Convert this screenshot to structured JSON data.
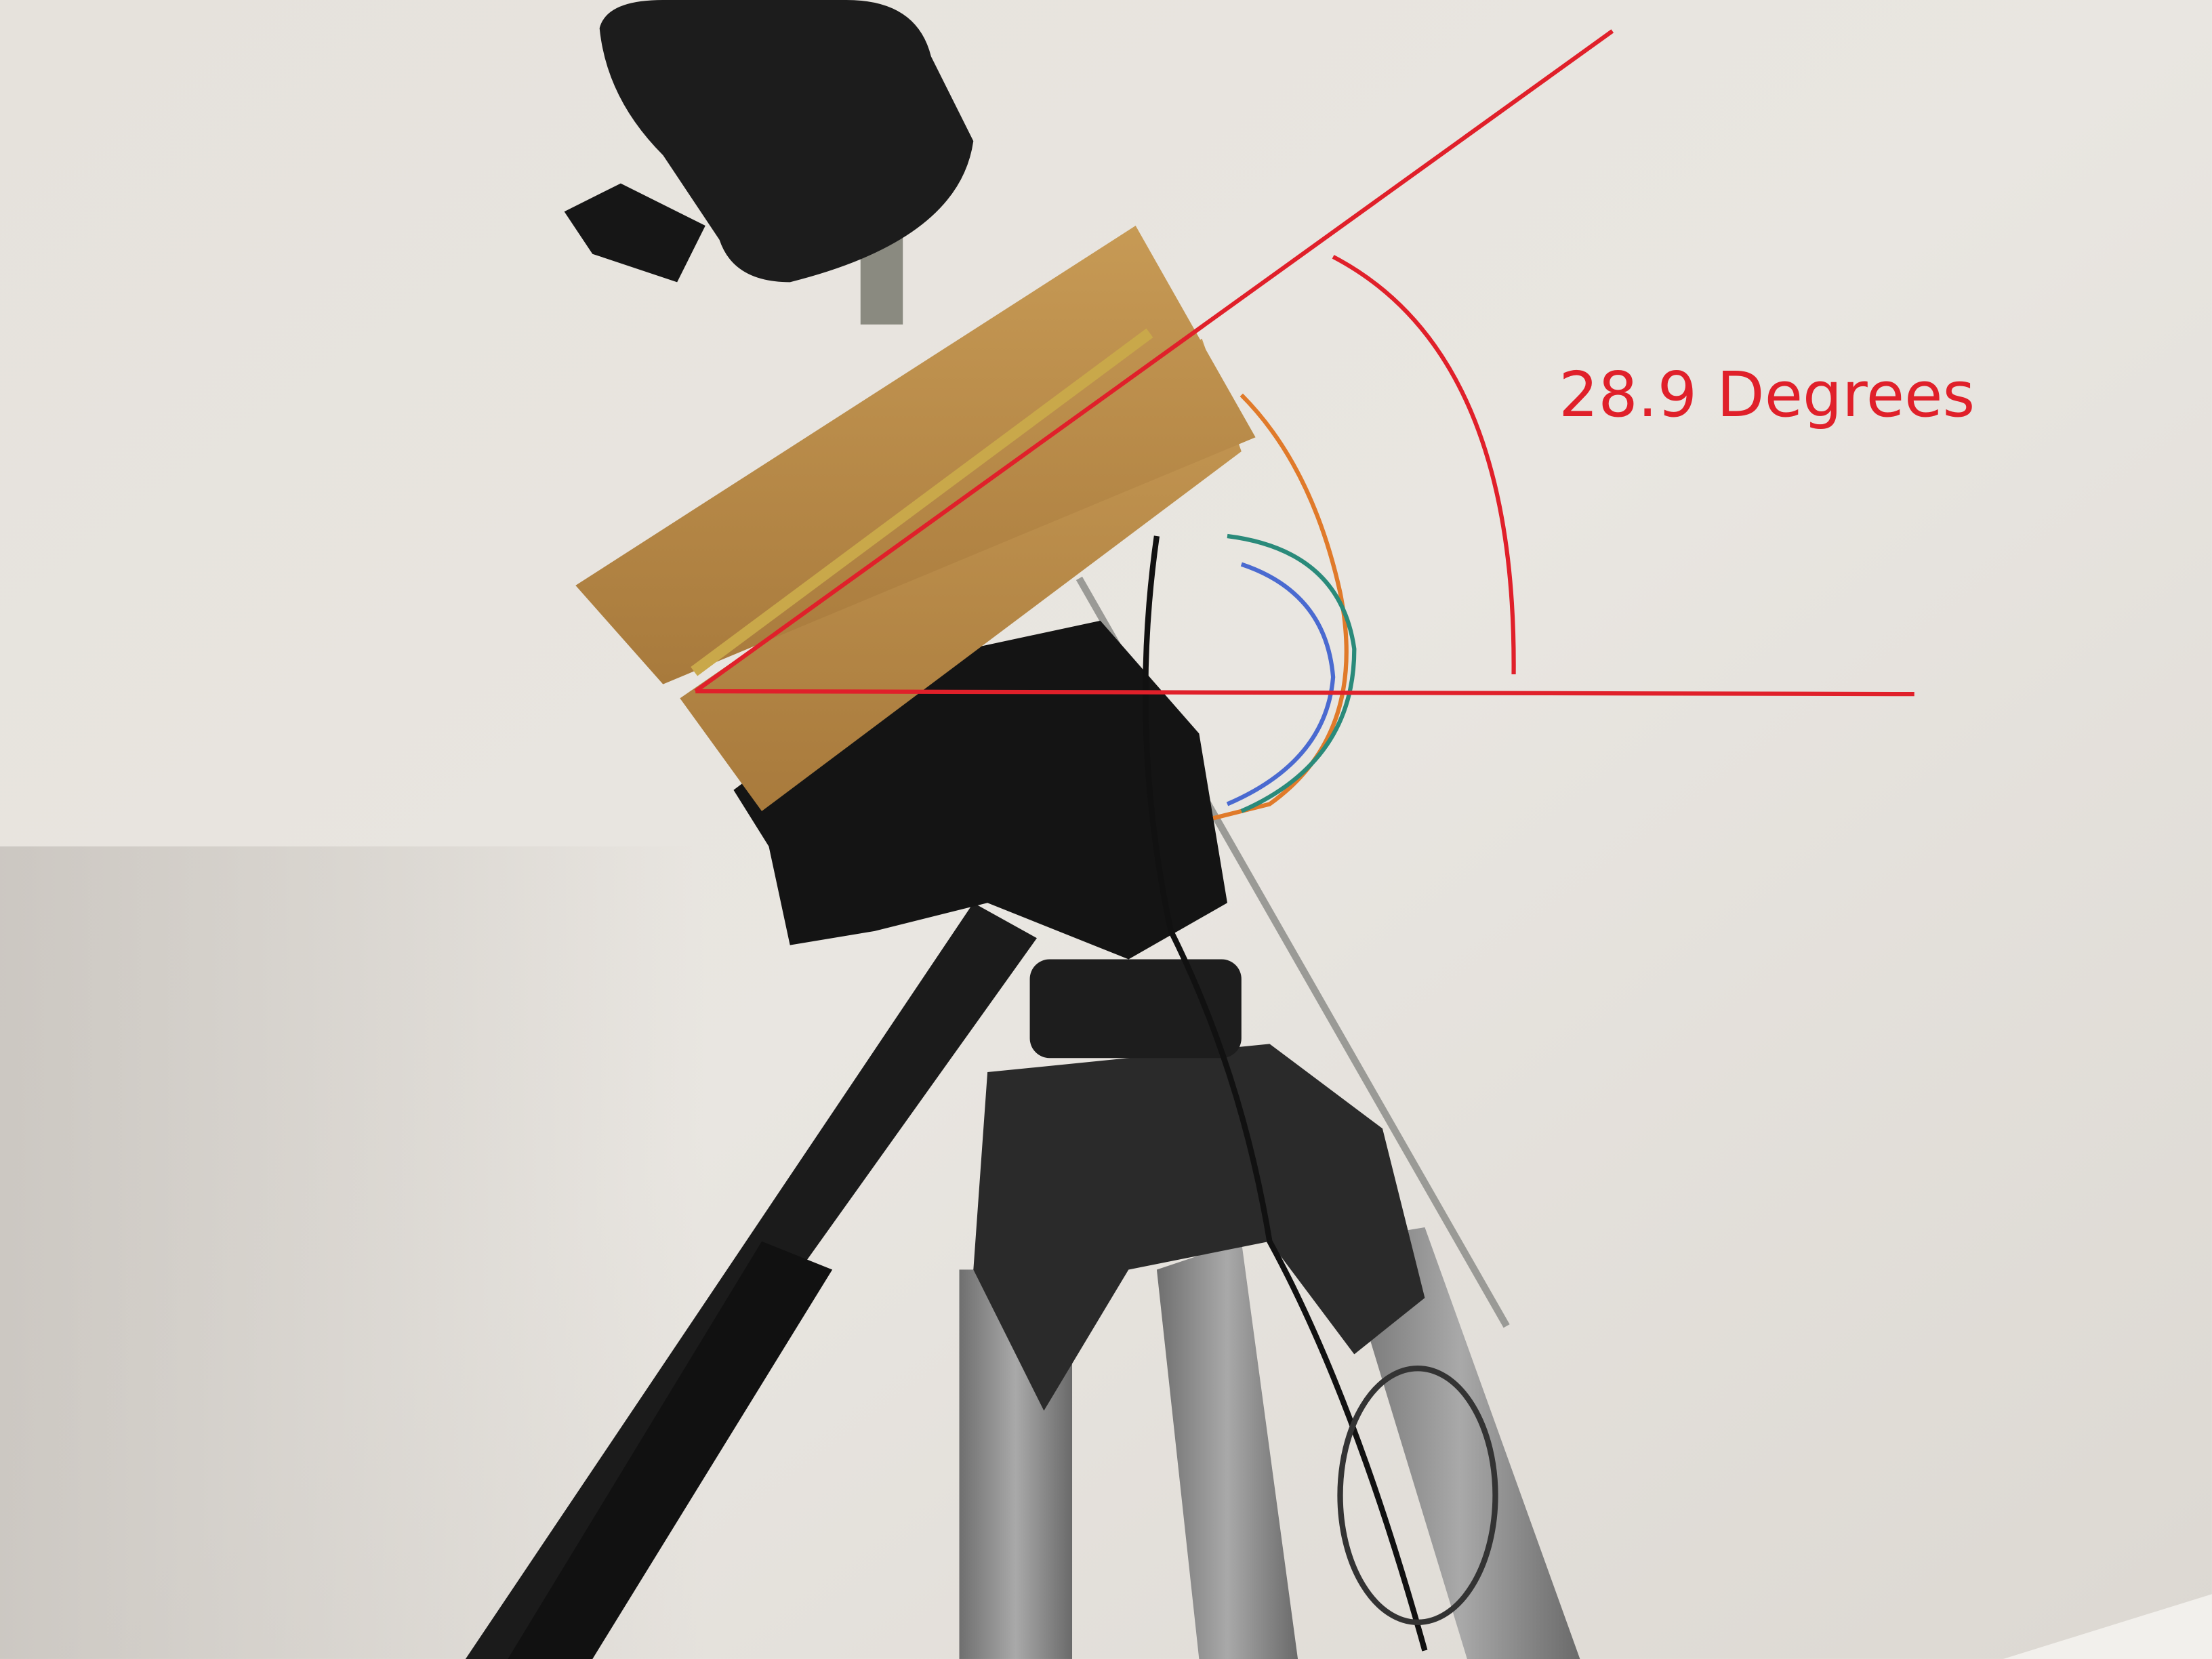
{
  "annotation": {
    "label": "28.9 Degrees"
  }
}
